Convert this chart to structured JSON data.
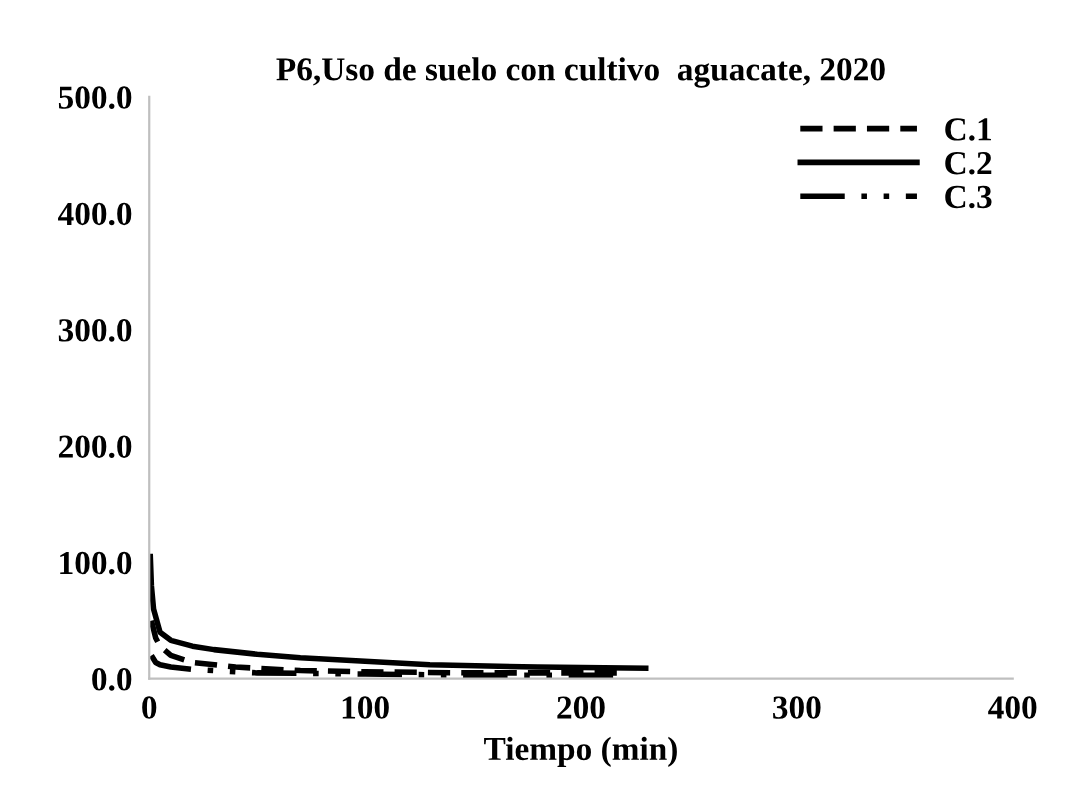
{
  "chart_data": {
    "type": "line",
    "title": "P6,Uso de suelo con cultivo  aguacate, 2020",
    "xlabel": "Tiempo (min)",
    "xlim": [
      0,
      400
    ],
    "xticks": [
      0,
      100,
      200,
      300,
      400
    ],
    "ylim": [
      0,
      500
    ],
    "yticks": [
      {
        "value": 0,
        "label": "0.0"
      },
      {
        "value": 100,
        "label": "100.0"
      },
      {
        "value": 200,
        "label": "200.0"
      },
      {
        "value": 300,
        "label": "300.0"
      },
      {
        "value": 400,
        "label": "400.0"
      },
      {
        "value": 500,
        "label": "500.0"
      }
    ],
    "grid": false,
    "legend": "top right",
    "marker": "none",
    "series": [
      {
        "name": "C.1",
        "color": "#000000",
        "line_style": "dashed",
        "x": [
          1,
          3,
          5,
          10,
          20,
          40,
          70,
          100,
          150,
          220
        ],
        "values": [
          50,
          35,
          28,
          20,
          14,
          10,
          7,
          6,
          5,
          5
        ]
      },
      {
        "name": "C.2",
        "color": "#000000",
        "line_style": "solid",
        "x": [
          0.5,
          1,
          2,
          5,
          10,
          20,
          30,
          50,
          70,
          100,
          130,
          180,
          230
        ],
        "values": [
          105,
          80,
          60,
          40,
          33,
          28,
          25,
          21,
          18,
          15,
          12,
          10,
          9
        ]
      },
      {
        "name": "C.3",
        "color": "#000000",
        "line_style": "dashdot",
        "x": [
          1,
          3,
          5,
          10,
          20,
          50,
          100,
          150,
          220
        ],
        "values": [
          20,
          14,
          12,
          10,
          8,
          5,
          4,
          3,
          3
        ]
      }
    ]
  }
}
